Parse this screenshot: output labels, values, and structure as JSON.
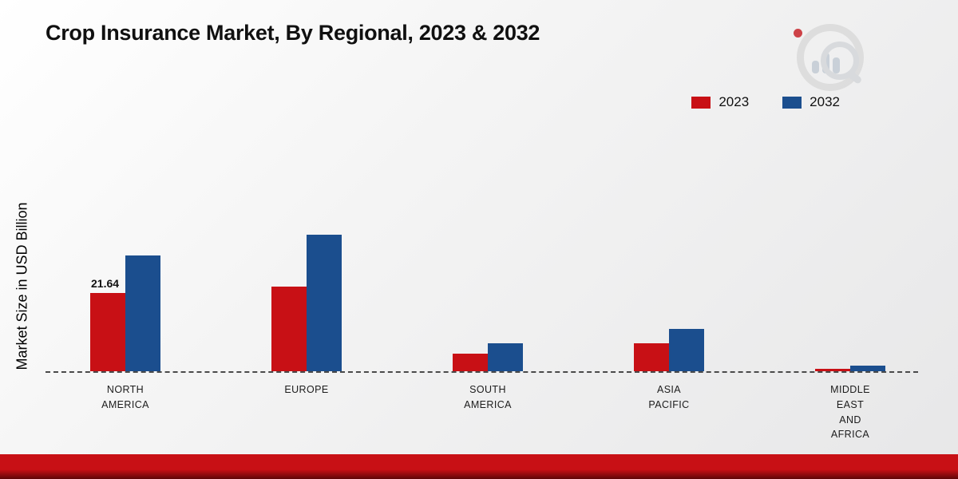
{
  "title": "Crop Insurance Market, By Regional, 2023 & 2032",
  "ylabel": "Market Size in USD Billion",
  "legend": [
    {
      "label": "2023",
      "color": "#c81015"
    },
    {
      "label": "2032",
      "color": "#1b4e8e"
    }
  ],
  "chart_data": {
    "type": "bar",
    "title": "Crop Insurance Market, By Regional, 2023 & 2032",
    "xlabel": "",
    "ylabel": "Market Size in USD Billion",
    "categories": [
      "NORTH AMERICA",
      "EUROPE",
      "SOUTH AMERICA",
      "ASIA PACIFIC",
      "MIDDLE EAST AND AFRICA"
    ],
    "category_lines": [
      [
        "NORTH",
        "AMERICA"
      ],
      [
        "EUROPE"
      ],
      [
        "SOUTH",
        "AMERICA"
      ],
      [
        "ASIA",
        "PACIFIC"
      ],
      [
        "MIDDLE",
        "EAST",
        "AND",
        "AFRICA"
      ]
    ],
    "series": [
      {
        "name": "2023",
        "color": "#c81015",
        "values": [
          21.64,
          23.2,
          4.9,
          7.6,
          0.7
        ]
      },
      {
        "name": "2032",
        "color": "#1b4e8e",
        "values": [
          31.8,
          37.5,
          7.8,
          11.7,
          1.5
        ]
      }
    ],
    "annotations": [
      {
        "series_index": 0,
        "category_index": 0,
        "text": "21.64"
      }
    ],
    "ylim": [
      0,
      40
    ],
    "grid": false,
    "legend_position": "top-right",
    "baseline_style": "dashed"
  }
}
